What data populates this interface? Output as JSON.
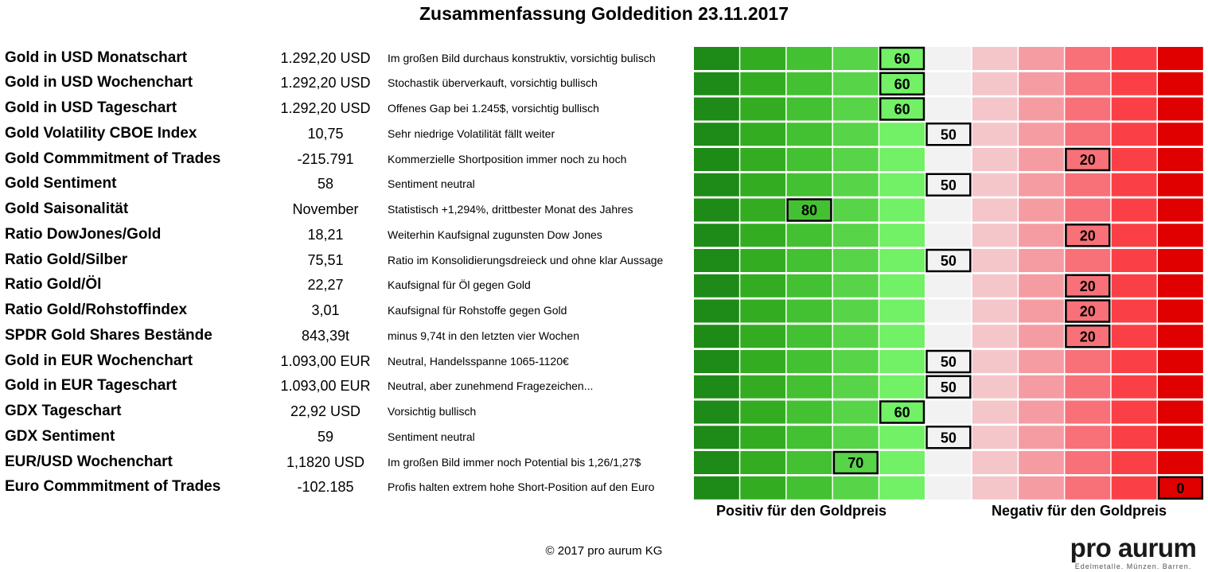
{
  "title": "Zusammenfassung Goldedition 23.11.2017",
  "chart_data": {
    "type": "table",
    "title": "Zusammenfassung Goldedition 23.11.2017",
    "scale": {
      "min": 0,
      "max": 100,
      "step": 10,
      "positive_label": "Positiv für den Goldpreis",
      "negative_label": "Negativ für den Goldpreis",
      "segment_colors": [
        "#1e8a17",
        "#33ac22",
        "#44c132",
        "#58d448",
        "#72f066",
        "#f2f2f2",
        "#f4c6ca",
        "#f59ca2",
        "#f87078",
        "#fa4046",
        "#e00000"
      ]
    },
    "rows": [
      {
        "indicator": "Gold in USD Monatschart",
        "value": "1.292,20 USD",
        "comment": "Im großen Bild durchaus konstruktiv, vorsichtig  bulisch",
        "score": 60
      },
      {
        "indicator": "Gold in USD Wochenchart",
        "value": "1.292,20 USD",
        "comment": "Stochastik überverkauft, vorsichtig bullisch",
        "score": 60
      },
      {
        "indicator": "Gold in USD Tageschart",
        "value": "1.292,20 USD",
        "comment": "Offenes Gap bei 1.245$, vorsichtig bullisch",
        "score": 60
      },
      {
        "indicator": "Gold Volatility CBOE Index",
        "value": "10,75",
        "comment": "Sehr niedrige Volatilität fällt weiter",
        "score": 50
      },
      {
        "indicator": "Gold Commmitment of Trades",
        "value": "-215.791",
        "comment": "Kommerzielle Shortposition immer noch zu hoch",
        "score": 20
      },
      {
        "indicator": "Gold Sentiment",
        "value": "58",
        "comment": "Sentiment neutral",
        "score": 50
      },
      {
        "indicator": "Gold Saisonalität",
        "value": "November",
        "comment": "Statistisch +1,294%, drittbester Monat des Jahres",
        "score": 80
      },
      {
        "indicator": "Ratio DowJones/Gold",
        "value": "18,21",
        "comment": "Weiterhin Kaufsignal zugunsten Dow Jones",
        "score": 20
      },
      {
        "indicator": "Ratio Gold/Silber",
        "value": "75,51",
        "comment": "Ratio im Konsolidierungsdreieck und ohne klar Aussage",
        "score": 50
      },
      {
        "indicator": "Ratio Gold/Öl",
        "value": "22,27",
        "comment": "Kaufsignal für Öl gegen Gold",
        "score": 20
      },
      {
        "indicator": "Ratio Gold/Rohstoffindex",
        "value": "3,01",
        "comment": "Kaufsignal für Rohstoffe gegen Gold",
        "score": 20
      },
      {
        "indicator": "SPDR Gold Shares Bestände",
        "value": "843,39t",
        "comment": "minus 9,74t in den letzten vier Wochen",
        "score": 20
      },
      {
        "indicator": "Gold in EUR Wochenchart",
        "value": "1.093,00 EUR",
        "comment": "Neutral, Handelsspanne 1065-1120€",
        "score": 50
      },
      {
        "indicator": "Gold in EUR Tageschart",
        "value": "1.093,00 EUR",
        "comment": "Neutral, aber zunehmend Fragezeichen...",
        "score": 50
      },
      {
        "indicator": "GDX Tageschart",
        "value": "22,92 USD",
        "comment": "Vorsichtig bullisch",
        "score": 60
      },
      {
        "indicator": "GDX Sentiment",
        "value": "59",
        "comment": "Sentiment neutral",
        "score": 50
      },
      {
        "indicator": "EUR/USD Wochenchart",
        "value": "1,1820 USD",
        "comment": "Im großen Bild immer noch Potential bis 1,26/1,27$",
        "score": 70
      },
      {
        "indicator": "Euro Commmitment of Trades",
        "value": "-102.185",
        "comment": "Profis halten extrem hohe Short-Position auf den Euro",
        "score": 0
      }
    ]
  },
  "footer": {
    "copyright": "© 2017 pro aurum KG"
  },
  "logo": {
    "name": "pro aurum",
    "tagline": "Edelmetalle. Münzen. Barren."
  }
}
